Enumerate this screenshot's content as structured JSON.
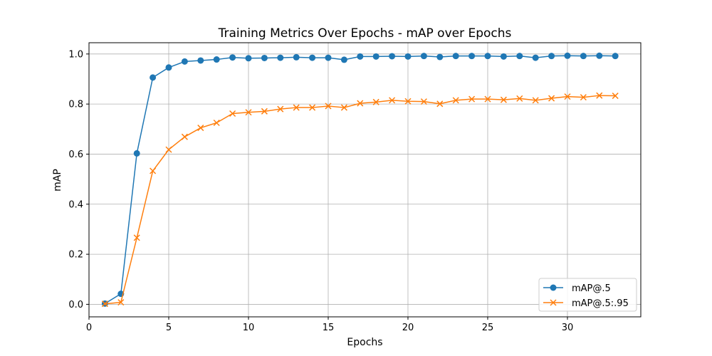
{
  "chart_data": {
    "type": "line",
    "title": "Training Metrics Over Epochs - mAP over Epochs",
    "xlabel": "Epochs",
    "ylabel": "mAP",
    "xlim": [
      0,
      34.6
    ],
    "ylim": [
      -0.05,
      1.045
    ],
    "xticks": [
      0,
      5,
      10,
      15,
      20,
      25,
      30
    ],
    "yticks": [
      0.0,
      0.2,
      0.4,
      0.6,
      0.8,
      1.0
    ],
    "xtick_labels": [
      "0",
      "5",
      "10",
      "15",
      "20",
      "25",
      "30"
    ],
    "ytick_labels": [
      "0.0",
      "0.2",
      "0.4",
      "0.6",
      "0.8",
      "1.0"
    ],
    "grid": true,
    "legend_position": "lower-right",
    "x": [
      1,
      2,
      3,
      4,
      5,
      6,
      7,
      8,
      9,
      10,
      11,
      12,
      13,
      14,
      15,
      16,
      17,
      18,
      19,
      20,
      21,
      22,
      23,
      24,
      25,
      26,
      27,
      28,
      29,
      30,
      31,
      32,
      33
    ],
    "series": [
      {
        "name": "mAP@.5",
        "color": "#1f77b4",
        "marker": "circle",
        "values": [
          0.003,
          0.042,
          0.603,
          0.906,
          0.946,
          0.97,
          0.974,
          0.978,
          0.986,
          0.983,
          0.984,
          0.985,
          0.987,
          0.985,
          0.985,
          0.977,
          0.99,
          0.99,
          0.991,
          0.99,
          0.992,
          0.988,
          0.992,
          0.992,
          0.992,
          0.99,
          0.992,
          0.985,
          0.992,
          0.993,
          0.992,
          0.993,
          0.992
        ]
      },
      {
        "name": "mAP@.5:.95",
        "color": "#ff7f0e",
        "marker": "x",
        "values": [
          0.002,
          0.008,
          0.266,
          0.533,
          0.618,
          0.669,
          0.705,
          0.725,
          0.762,
          0.767,
          0.771,
          0.78,
          0.786,
          0.786,
          0.792,
          0.786,
          0.803,
          0.808,
          0.815,
          0.811,
          0.81,
          0.801,
          0.815,
          0.82,
          0.82,
          0.817,
          0.822,
          0.815,
          0.823,
          0.83,
          0.827,
          0.834,
          0.833
        ]
      }
    ]
  }
}
